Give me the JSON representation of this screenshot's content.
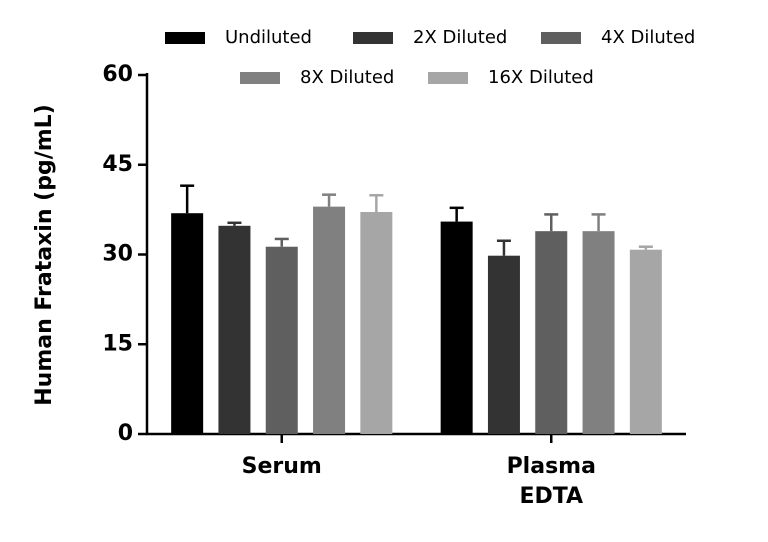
{
  "chart_data": {
    "type": "bar",
    "y_label": "Human Frataxin (pg/mL)",
    "categories": [
      "Serum",
      "Plasma\nEDTA"
    ],
    "series": [
      {
        "name": "Undiluted",
        "color": "#000000",
        "values": [
          36.9,
          35.5
        ],
        "errors": [
          4.6,
          2.3
        ]
      },
      {
        "name": "2X Diluted",
        "color": "#333333",
        "values": [
          34.8,
          29.8
        ],
        "errors": [
          0.5,
          2.5
        ]
      },
      {
        "name": "4X Diluted",
        "color": "#5f5f5f",
        "values": [
          31.3,
          33.9
        ],
        "errors": [
          1.3,
          2.8
        ]
      },
      {
        "name": "8X Diluted",
        "color": "#808080",
        "values": [
          38.0,
          33.9
        ],
        "errors": [
          2.0,
          2.8
        ]
      },
      {
        "name": "16X Diluted",
        "color": "#a6a6a6",
        "values": [
          37.1,
          30.8
        ],
        "errors": [
          2.8,
          0.5
        ]
      }
    ],
    "ylim": [
      0,
      60
    ],
    "yticks": [
      0,
      15,
      30,
      45,
      60
    ],
    "grid": false
  }
}
